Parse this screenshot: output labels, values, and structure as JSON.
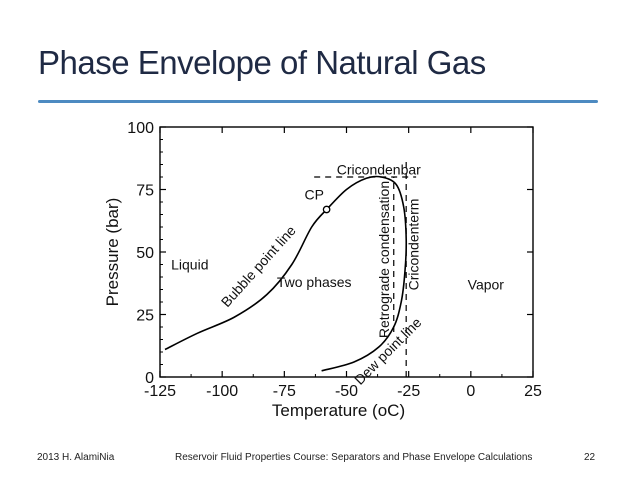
{
  "slide": {
    "title": "Phase Envelope of Natural Gas"
  },
  "footer": {
    "left": "2013 H. AlamiNia",
    "center": "Reservoir Fluid Properties Course: Separators and Phase Envelope Calculations",
    "page": "22"
  },
  "chart_data": {
    "type": "line",
    "xlabel": "Temperature (oC)",
    "ylabel": "Pressure (bar)",
    "xlim": [
      -125,
      25
    ],
    "ylim": [
      0,
      100
    ],
    "xticks": [
      -125,
      -100,
      -75,
      -50,
      -25,
      0,
      25
    ],
    "yticks": [
      0,
      25,
      50,
      75,
      100
    ],
    "grid": false,
    "series": [
      {
        "name": "Bubble point line",
        "x": [
          -123,
          -110,
          -95,
          -82,
          -72,
          -64,
          -58
        ],
        "y": [
          11,
          17.5,
          24,
          33,
          45,
          60,
          67
        ]
      },
      {
        "name": "Dew point line",
        "x": [
          -58,
          -50,
          -42,
          -36,
          -30,
          -27,
          -26,
          -26.5,
          -28,
          -31,
          -37,
          -47,
          -60
        ],
        "y": [
          67,
          75,
          79.5,
          80,
          77,
          68,
          55,
          42,
          30,
          20,
          12,
          6,
          2.5
        ]
      }
    ],
    "points": [
      {
        "name": "CP",
        "x": -58,
        "y": 67
      }
    ],
    "reference_lines": [
      {
        "name": "Cricondenbar",
        "orientation": "horizontal",
        "y": 80,
        "x_from": -63,
        "x_to": -22,
        "style": "dashed"
      },
      {
        "name": "Cricondenterm",
        "orientation": "vertical",
        "x": -26,
        "y_from": 0,
        "y_to": 87,
        "style": "dashed"
      },
      {
        "name": "Retrograde condensation",
        "orientation": "vertical",
        "x": -31,
        "y_from": 18,
        "y_to": 80,
        "style": "dashed"
      }
    ],
    "annotations": [
      {
        "text": "Liquid",
        "x": -113,
        "y": 43
      },
      {
        "text": "Two phases",
        "x": -63,
        "y": 36
      },
      {
        "text": "Vapor",
        "x": 6,
        "y": 35
      },
      {
        "text": "CP",
        "x": -63,
        "y": 71
      },
      {
        "text": "Cricondenbar",
        "x": -37,
        "y": 81
      },
      {
        "text": "Bubble point line",
        "x": -84,
        "y": 43,
        "rotation": -48
      },
      {
        "text": "Retrograde condensation",
        "x": -33,
        "y": 47,
        "rotation": -90
      },
      {
        "text": "Cricondenterm",
        "x": -21,
        "y": 53,
        "rotation": -90
      },
      {
        "text": "Dew point line",
        "x": -32,
        "y": 9,
        "rotation": -45
      }
    ]
  }
}
